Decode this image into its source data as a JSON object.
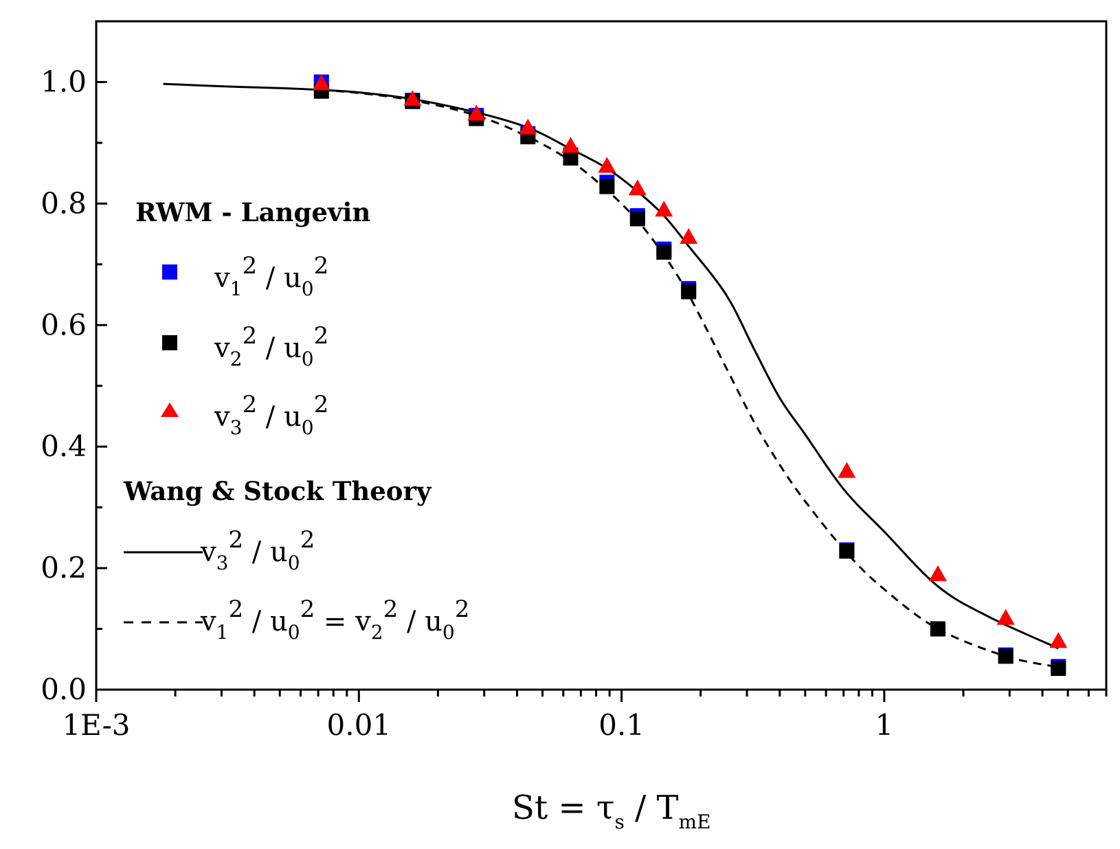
{
  "chart_data": {
    "type": "scatter",
    "title": "",
    "xlabel": {
      "main": "St = τ",
      "sub1": "s",
      "mid": " / T",
      "sub2": "mE"
    },
    "ylabel": "",
    "x_scale": "log",
    "xlim": [
      0.001,
      7
    ],
    "ylim": [
      0.0,
      1.1
    ],
    "x_ticks": [
      {
        "value": 0.001,
        "label": "1E-3"
      },
      {
        "value": 0.01,
        "label": "0.01"
      },
      {
        "value": 0.1,
        "label": "0.1"
      },
      {
        "value": 1,
        "label": "1"
      }
    ],
    "y_ticks": [
      {
        "value": 0.0,
        "label": "0.0"
      },
      {
        "value": 0.2,
        "label": "0.2"
      },
      {
        "value": 0.4,
        "label": "0.4"
      },
      {
        "value": 0.6,
        "label": "0.6"
      },
      {
        "value": 0.8,
        "label": "0.8"
      },
      {
        "value": 1.0,
        "label": "1.0"
      }
    ],
    "grid": false,
    "legend_position": "left",
    "legend": {
      "group1_title": "RWM - Langevin",
      "group2_title": "Wang & Stock Theory"
    },
    "series": [
      {
        "name": "v1^2 / u0^2",
        "label_parts": [
          "v",
          "1",
          "2",
          " / u",
          "0",
          "2"
        ],
        "marker": "square",
        "color": "#0000ff",
        "x": [
          0.0072,
          0.016,
          0.028,
          0.044,
          0.064,
          0.088,
          0.115,
          0.145,
          0.18,
          0.72,
          1.6,
          2.9,
          4.6
        ],
        "y": [
          1.0,
          0.97,
          0.945,
          0.915,
          0.88,
          0.835,
          0.78,
          0.725,
          0.66,
          0.23,
          0.1,
          0.057,
          0.038
        ]
      },
      {
        "name": "v2^2 / u0^2",
        "label_parts": [
          "v",
          "2",
          "2",
          " / u",
          "0",
          "2"
        ],
        "marker": "square",
        "color": "#000000",
        "x": [
          0.0072,
          0.016,
          0.028,
          0.044,
          0.064,
          0.088,
          0.115,
          0.145,
          0.18,
          0.72,
          1.6,
          2.9,
          4.6
        ],
        "y": [
          0.985,
          0.968,
          0.94,
          0.91,
          0.875,
          0.828,
          0.775,
          0.72,
          0.655,
          0.228,
          0.1,
          0.055,
          0.035
        ]
      },
      {
        "name": "v3^2 / u0^2",
        "label_parts": [
          "v",
          "3",
          "2",
          " / u",
          "0",
          "2"
        ],
        "marker": "triangle",
        "color": "#ff0000",
        "x": [
          0.0072,
          0.016,
          0.028,
          0.044,
          0.064,
          0.088,
          0.115,
          0.145,
          0.18,
          0.72,
          1.6,
          2.9,
          4.6
        ],
        "y": [
          0.998,
          0.972,
          0.948,
          0.925,
          0.895,
          0.862,
          0.825,
          0.79,
          0.745,
          0.36,
          0.19,
          0.118,
          0.08
        ]
      }
    ],
    "theory_lines": [
      {
        "name": "v3^2 / u0^2 (theory)",
        "label_parts": [
          "v",
          "3",
          "2",
          " / u",
          "0",
          "2"
        ],
        "style": "solid",
        "color": "#000000",
        "x": [
          0.0018,
          0.003,
          0.005,
          0.0072,
          0.01,
          0.016,
          0.028,
          0.044,
          0.064,
          0.088,
          0.115,
          0.145,
          0.18,
          0.25,
          0.32,
          0.4,
          0.5,
          0.7,
          1.0,
          1.6,
          2.5,
          4.6
        ],
        "y": [
          0.997,
          0.993,
          0.99,
          0.987,
          0.983,
          0.972,
          0.95,
          0.925,
          0.89,
          0.858,
          0.82,
          0.78,
          0.73,
          0.65,
          0.56,
          0.48,
          0.42,
          0.33,
          0.26,
          0.17,
          0.12,
          0.068
        ]
      },
      {
        "name": "v1^2 / u0^2 = v2^2 / u0^2 (theory)",
        "label_parts": [
          "v",
          "1",
          "2",
          " / u",
          "0",
          "2",
          " = v",
          "2",
          "2",
          " / u",
          "0",
          "2"
        ],
        "style": "dashed",
        "color": "#000000",
        "x": [
          0.0072,
          0.01,
          0.016,
          0.028,
          0.044,
          0.064,
          0.088,
          0.115,
          0.145,
          0.18,
          0.25,
          0.32,
          0.4,
          0.5,
          0.72,
          1.0,
          1.6,
          2.9,
          4.6
        ],
        "y": [
          0.987,
          0.982,
          0.97,
          0.945,
          0.91,
          0.87,
          0.822,
          0.772,
          0.715,
          0.65,
          0.53,
          0.44,
          0.37,
          0.31,
          0.225,
          0.165,
          0.1,
          0.055,
          0.037
        ]
      }
    ]
  }
}
